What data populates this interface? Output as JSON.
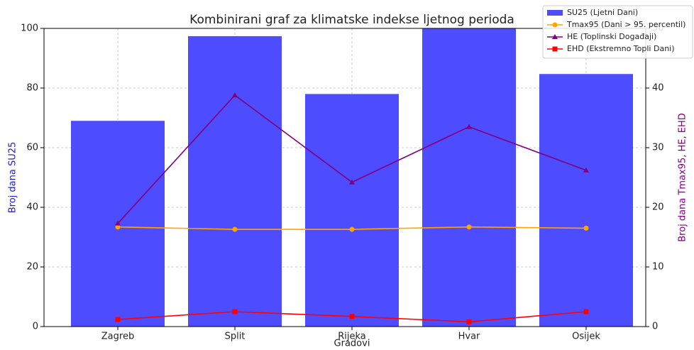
{
  "chart_data": {
    "type": "bar-line",
    "title": "Kombinirani graf za klimatske indekse ljetnog perioda",
    "x_label": "Gradovi",
    "y_label": "Broj dana SU25",
    "y2_label": "Broj dana Tmax95, HE, EHD",
    "categories": [
      "Zagreb",
      "Split",
      "Rijeka",
      "Hvar",
      "Osijek"
    ],
    "series": [
      {
        "name": "SU25 (Ljetni Dani)",
        "color": "#4d4dff",
        "kind": "bar",
        "values": [
          69,
          97.4,
          78,
          100,
          84.7
        ]
      },
      {
        "name": "Tmax95 (Dani > 95. percentil)",
        "color": "#ffa500",
        "kind": "line",
        "marker": "circle",
        "axis": "y2",
        "values": [
          16.7,
          16.3,
          16.3,
          16.7,
          16.5
        ]
      },
      {
        "name": "HE (Toplinski Događaji)",
        "color": "#800080",
        "kind": "line",
        "marker": "triangle",
        "axis": "y2",
        "values": [
          17.3,
          38.8,
          24.2,
          33.5,
          26.2
        ]
      },
      {
        "name": "EHD (Ekstremno Topli Dani)",
        "color": "#ff0000",
        "kind": "line",
        "marker": "square",
        "axis": "y2",
        "values": [
          1.2,
          2.5,
          1.7,
          0.8,
          2.5
        ]
      }
    ],
    "ylim": [
      0,
      100
    ],
    "yticks": [
      0,
      20,
      40,
      60,
      80,
      100
    ],
    "y2lim": [
      0,
      50
    ],
    "y2ticks": [
      0,
      10,
      20,
      30,
      40,
      50
    ],
    "grid": true,
    "legend": "upper-right"
  }
}
